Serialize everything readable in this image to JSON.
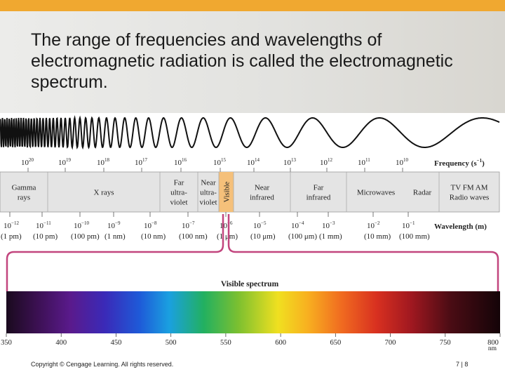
{
  "slide": {
    "title": "The range of frequencies and wavelengths of electromagnetic radiation is called the electromagnetic spectrum.",
    "copyright": "Copyright © Cengage Learning. All rights reserved.",
    "page": "7 | 8",
    "accent_color": "#f0a830"
  },
  "spectrum": {
    "frequency_label": "Frequency (s",
    "frequency_label_exp": "−1",
    "frequency_label_close": ")",
    "frequency_ticks": [
      {
        "base": "10",
        "exp": "20"
      },
      {
        "base": "10",
        "exp": "19"
      },
      {
        "base": "10",
        "exp": "18"
      },
      {
        "base": "10",
        "exp": "17"
      },
      {
        "base": "10",
        "exp": "16"
      },
      {
        "base": "10",
        "exp": "15"
      },
      {
        "base": "10",
        "exp": "14"
      },
      {
        "base": "10",
        "exp": "13"
      },
      {
        "base": "10",
        "exp": "12"
      },
      {
        "base": "10",
        "exp": "11"
      },
      {
        "base": "10",
        "exp": "10"
      }
    ],
    "regions": [
      {
        "lines": [
          "Gamma",
          "rays"
        ]
      },
      {
        "lines": [
          "X rays"
        ]
      },
      {
        "lines": [
          "Far",
          "ultra-",
          "violet"
        ]
      },
      {
        "lines": [
          "Near",
          "ultra-",
          "violet"
        ]
      },
      {
        "lines": [
          "Visible"
        ],
        "highlight_color": "#f5c07a"
      },
      {
        "lines": [
          "Near",
          "infrared"
        ]
      },
      {
        "lines": [
          "Far",
          "infrared"
        ]
      },
      {
        "lines": [
          "Microwaves"
        ]
      },
      {
        "lines": [
          "Radar"
        ]
      },
      {
        "lines": [
          "TV FM AM",
          "Radio waves"
        ]
      }
    ],
    "wavelength_label": "Wavelength (m)",
    "wavelength_ticks": [
      {
        "base": "10",
        "exp": "−12",
        "unit": "(1 pm)"
      },
      {
        "base": "10",
        "exp": "−11",
        "unit": "(10 pm)"
      },
      {
        "base": "10",
        "exp": "−10",
        "unit": "(100 pm)"
      },
      {
        "base": "10",
        "exp": "−9",
        "unit": "(1 nm)"
      },
      {
        "base": "10",
        "exp": "−8",
        "unit": "(10 nm)"
      },
      {
        "base": "10",
        "exp": "−7",
        "unit": "(100 nm)"
      },
      {
        "base": "10",
        "exp": "−6",
        "unit": "(1 μm)"
      },
      {
        "base": "10",
        "exp": "−5",
        "unit": "(10 μm)"
      },
      {
        "base": "10",
        "exp": "−4",
        "unit": "(100 μm)"
      },
      {
        "base": "10",
        "exp": "−3",
        "unit": "(1 mm)"
      },
      {
        "base": "10",
        "exp": "−2",
        "unit": "(10 mm)"
      },
      {
        "base": "10",
        "exp": "−1",
        "unit": "(100 mm)"
      }
    ],
    "bracket_color": "#c2457e",
    "visible_title": "Visible spectrum",
    "visible_ticks": [
      "350",
      "400",
      "450",
      "500",
      "550",
      "600",
      "650",
      "700",
      "750",
      "800"
    ],
    "visible_unit": "nm"
  }
}
